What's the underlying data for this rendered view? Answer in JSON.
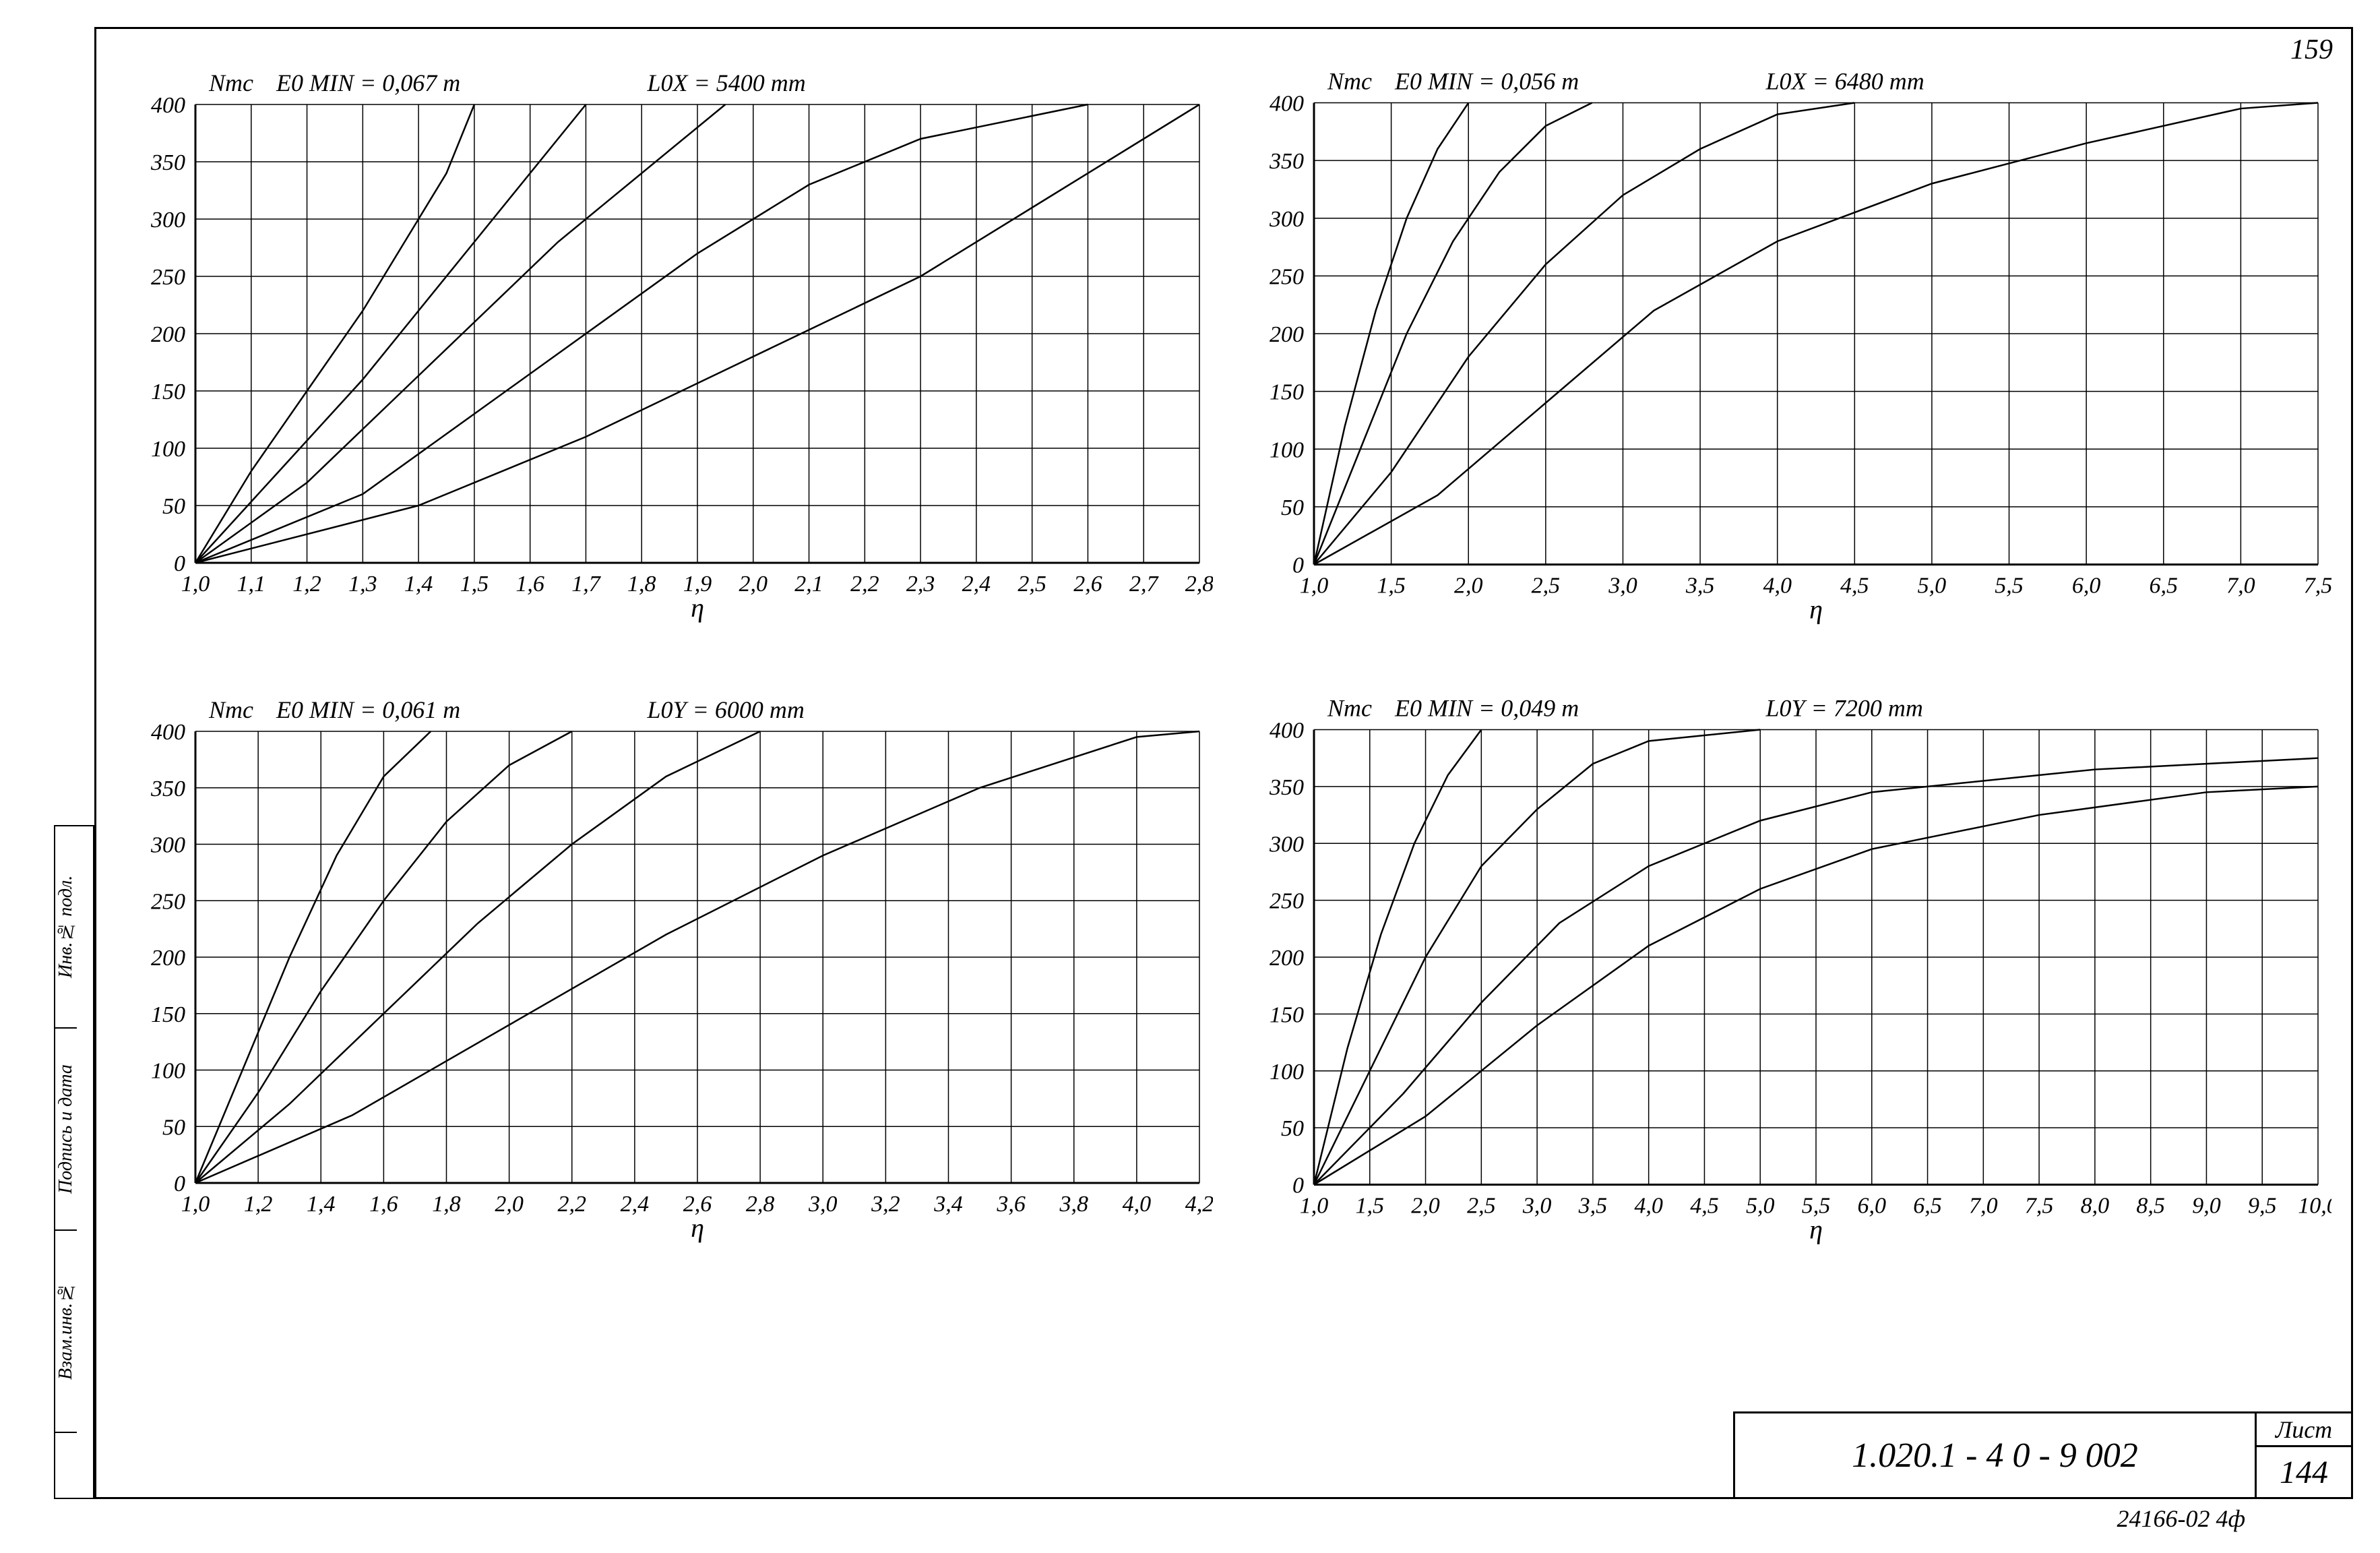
{
  "page": {
    "top_right_number": "159",
    "footer": "24166-02   4ф"
  },
  "title_block": {
    "code": "1.020.1 - 4   0 - 9   002",
    "sheet_label": "Лист",
    "sheet_number": "144"
  },
  "side_labels": [
    "Инв.№ подл.",
    "Подпись и дата",
    "Взам.инв.№"
  ],
  "charts": [
    {
      "id": "tl",
      "y_title": "Nтс",
      "header_left": "E0 MIN = 0,067 m",
      "header_right": "L0X = 5400 mm",
      "x_label": "η",
      "xlim": [
        1.0,
        2.8
      ],
      "xtick_step": 0.1,
      "ylim": [
        0,
        400
      ],
      "ytick_step": 50,
      "x_fmt": "comma1",
      "series": [
        [
          [
            1.0,
            0
          ],
          [
            1.1,
            80
          ],
          [
            1.2,
            150
          ],
          [
            1.3,
            220
          ],
          [
            1.4,
            300
          ],
          [
            1.45,
            340
          ],
          [
            1.5,
            400
          ]
        ],
        [
          [
            1.0,
            0
          ],
          [
            1.15,
            80
          ],
          [
            1.3,
            160
          ],
          [
            1.4,
            220
          ],
          [
            1.5,
            280
          ],
          [
            1.6,
            340
          ],
          [
            1.7,
            400
          ]
        ],
        [
          [
            1.0,
            0
          ],
          [
            1.2,
            70
          ],
          [
            1.35,
            140
          ],
          [
            1.5,
            210
          ],
          [
            1.65,
            280
          ],
          [
            1.8,
            340
          ],
          [
            1.95,
            400
          ]
        ],
        [
          [
            1.0,
            0
          ],
          [
            1.3,
            60
          ],
          [
            1.5,
            130
          ],
          [
            1.7,
            200
          ],
          [
            1.9,
            270
          ],
          [
            2.1,
            330
          ],
          [
            2.3,
            370
          ],
          [
            2.6,
            400
          ]
        ],
        [
          [
            1.0,
            0
          ],
          [
            1.4,
            50
          ],
          [
            1.7,
            110
          ],
          [
            2.0,
            180
          ],
          [
            2.3,
            250
          ],
          [
            2.5,
            310
          ],
          [
            2.7,
            370
          ],
          [
            2.8,
            400
          ]
        ]
      ],
      "colors": "#000000"
    },
    {
      "id": "tr",
      "y_title": "Nтс",
      "header_left": "E0 MIN = 0,056 m",
      "header_right": "L0X = 6480 mm",
      "x_label": "η",
      "xlim": [
        1.0,
        7.5
      ],
      "xtick_step": 0.5,
      "ylim": [
        0,
        400
      ],
      "ytick_step": 50,
      "x_fmt": "comma1",
      "series": [
        [
          [
            1.0,
            0
          ],
          [
            1.2,
            120
          ],
          [
            1.4,
            220
          ],
          [
            1.6,
            300
          ],
          [
            1.8,
            360
          ],
          [
            2.0,
            400
          ]
        ],
        [
          [
            1.0,
            0
          ],
          [
            1.3,
            100
          ],
          [
            1.6,
            200
          ],
          [
            1.9,
            280
          ],
          [
            2.2,
            340
          ],
          [
            2.5,
            380
          ],
          [
            2.8,
            400
          ]
        ],
        [
          [
            1.0,
            0
          ],
          [
            1.5,
            80
          ],
          [
            2.0,
            180
          ],
          [
            2.5,
            260
          ],
          [
            3.0,
            320
          ],
          [
            3.5,
            360
          ],
          [
            4.0,
            390
          ],
          [
            4.5,
            400
          ]
        ],
        [
          [
            1.0,
            0
          ],
          [
            1.8,
            60
          ],
          [
            2.5,
            140
          ],
          [
            3.2,
            220
          ],
          [
            4.0,
            280
          ],
          [
            5.0,
            330
          ],
          [
            6.0,
            365
          ],
          [
            7.0,
            395
          ],
          [
            7.5,
            400
          ]
        ]
      ],
      "colors": "#000000"
    },
    {
      "id": "bl",
      "y_title": "Nтс",
      "header_left": "E0 MIN = 0,061 m",
      "header_right": "L0Y = 6000 mm",
      "x_label": "η",
      "xlim": [
        1.0,
        4.2
      ],
      "xtick_step": 0.2,
      "ylim": [
        0,
        400
      ],
      "ytick_step": 50,
      "x_fmt": "comma1",
      "series": [
        [
          [
            1.0,
            0
          ],
          [
            1.15,
            100
          ],
          [
            1.3,
            200
          ],
          [
            1.45,
            290
          ],
          [
            1.6,
            360
          ],
          [
            1.75,
            400
          ]
        ],
        [
          [
            1.0,
            0
          ],
          [
            1.2,
            80
          ],
          [
            1.4,
            170
          ],
          [
            1.6,
            250
          ],
          [
            1.8,
            320
          ],
          [
            2.0,
            370
          ],
          [
            2.2,
            400
          ]
        ],
        [
          [
            1.0,
            0
          ],
          [
            1.3,
            70
          ],
          [
            1.6,
            150
          ],
          [
            1.9,
            230
          ],
          [
            2.2,
            300
          ],
          [
            2.5,
            360
          ],
          [
            2.8,
            400
          ]
        ],
        [
          [
            1.0,
            0
          ],
          [
            1.5,
            60
          ],
          [
            2.0,
            140
          ],
          [
            2.5,
            220
          ],
          [
            3.0,
            290
          ],
          [
            3.5,
            350
          ],
          [
            4.0,
            395
          ],
          [
            4.2,
            400
          ]
        ]
      ],
      "colors": "#000000"
    },
    {
      "id": "br",
      "y_title": "Nтс",
      "header_left": "E0 MIN = 0,049 m",
      "header_right": "L0Y = 7200 mm",
      "x_label": "η",
      "xlim": [
        1.0,
        10.0
      ],
      "xtick_step": 0.5,
      "ylim": [
        0,
        400
      ],
      "ytick_step": 50,
      "x_fmt": "comma1",
      "series": [
        [
          [
            1.0,
            0
          ],
          [
            1.3,
            120
          ],
          [
            1.6,
            220
          ],
          [
            1.9,
            300
          ],
          [
            2.2,
            360
          ],
          [
            2.5,
            400
          ]
        ],
        [
          [
            1.0,
            0
          ],
          [
            1.5,
            100
          ],
          [
            2.0,
            200
          ],
          [
            2.5,
            280
          ],
          [
            3.0,
            330
          ],
          [
            3.5,
            370
          ],
          [
            4.0,
            390
          ],
          [
            5.0,
            400
          ]
        ],
        [
          [
            1.0,
            0
          ],
          [
            1.8,
            80
          ],
          [
            2.5,
            160
          ],
          [
            3.2,
            230
          ],
          [
            4.0,
            280
          ],
          [
            5.0,
            320
          ],
          [
            6.0,
            345
          ],
          [
            8.0,
            365
          ],
          [
            10.0,
            375
          ]
        ],
        [
          [
            1.0,
            0
          ],
          [
            2.0,
            60
          ],
          [
            3.0,
            140
          ],
          [
            4.0,
            210
          ],
          [
            5.0,
            260
          ],
          [
            6.0,
            295
          ],
          [
            7.5,
            325
          ],
          [
            9.0,
            345
          ],
          [
            10.0,
            350
          ]
        ]
      ],
      "colors": "#000000"
    }
  ],
  "style": {
    "background": "#ffffff",
    "ink": "#000000",
    "grid_stroke_width": 1.5,
    "axis_stroke_width": 3,
    "data_stroke_width": 2.5,
    "tick_fontsize": 34,
    "title_fontsize": 36,
    "axis_label_fontsize": 40
  }
}
